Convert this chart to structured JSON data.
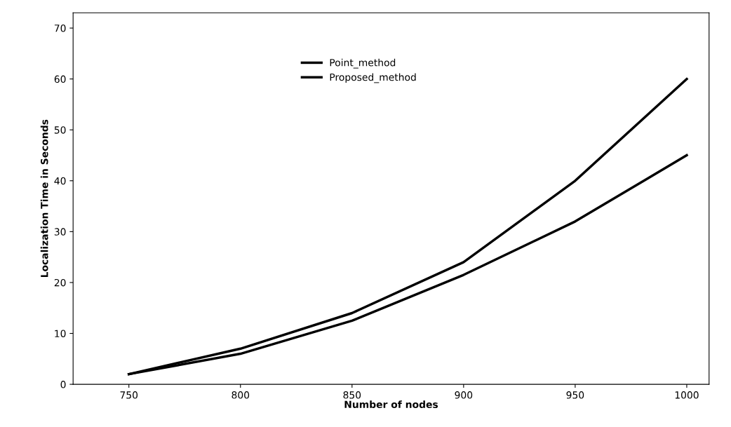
{
  "chart_data": {
    "type": "line",
    "xlabel": "Number of nodes",
    "ylabel": "Localization Time in Seconds",
    "x": [
      750,
      800,
      850,
      900,
      950,
      1000
    ],
    "series": [
      {
        "name": "Point_method",
        "color": "#000000",
        "values": [
          2,
          7,
          14,
          24,
          40,
          60
        ]
      },
      {
        "name": "Proposed_method",
        "color": "#000000",
        "values": [
          2,
          6,
          12.5,
          21.5,
          32,
          45
        ]
      }
    ],
    "xlim": [
      725,
      1010
    ],
    "xticks": [
      750,
      800,
      850,
      900,
      950,
      1000
    ],
    "ylim": [
      0,
      73
    ],
    "yticks": [
      0,
      10,
      20,
      30,
      40,
      50,
      60,
      70
    ],
    "grid": false,
    "legend": "top",
    "marker": "none",
    "line_style": "solid"
  }
}
